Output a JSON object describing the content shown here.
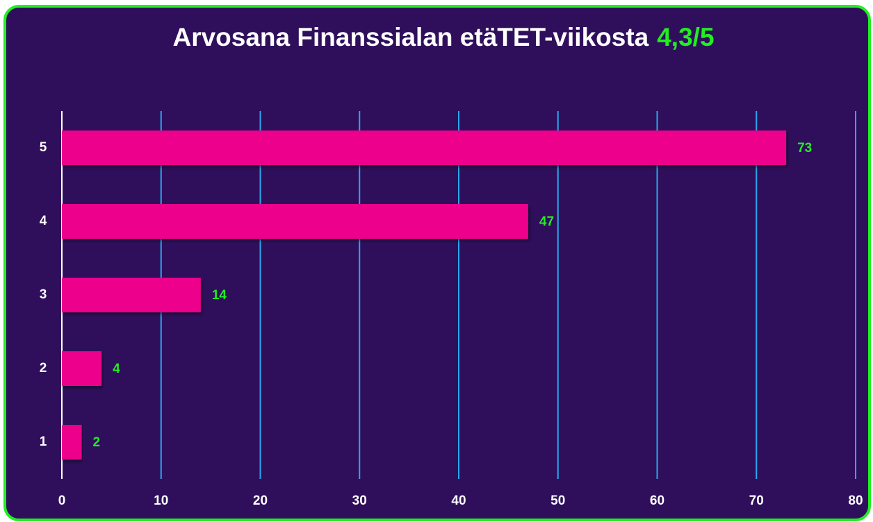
{
  "chart_data": {
    "type": "bar",
    "orientation": "horizontal",
    "title": "Arvosana Finanssialan etäTET-viikosta",
    "title_highlight": "4,3/5",
    "categories": [
      "5",
      "4",
      "3",
      "2",
      "1"
    ],
    "values": [
      73,
      47,
      14,
      4,
      2
    ],
    "color": "#ec008c",
    "label_color": "#22ee22",
    "grid_color": "#2aa8e8",
    "xlim": [
      0,
      80
    ],
    "xticks": [
      0,
      10,
      20,
      30,
      40,
      50,
      60,
      70,
      80
    ],
    "grid": true
  }
}
